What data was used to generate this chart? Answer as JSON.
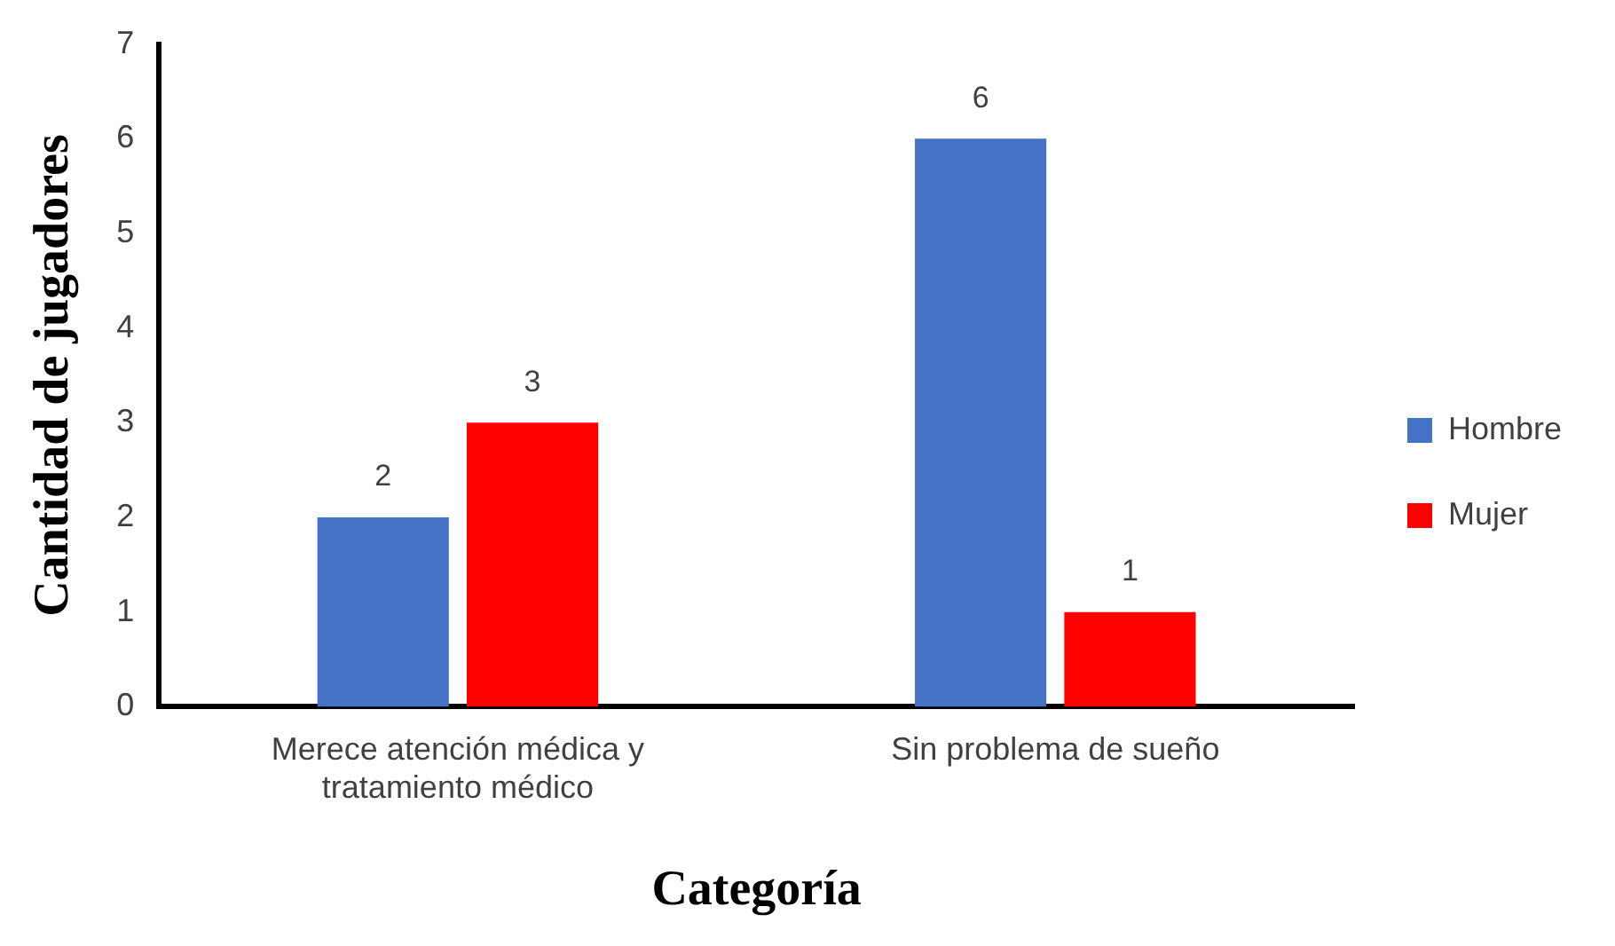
{
  "chart_data": {
    "type": "bar",
    "xlabel": "Categoría",
    "ylabel": "Cantidad de jugadores",
    "categories": [
      "Merece atención médica y tratamiento médico",
      "Sin problema de sueño"
    ],
    "series": [
      {
        "name": "Hombre",
        "color": "#4472c4",
        "values": [
          2,
          6
        ]
      },
      {
        "name": "Mujer",
        "color": "#ff0000",
        "values": [
          3,
          1
        ]
      }
    ],
    "ylim": [
      0,
      7
    ],
    "yticks": [
      0,
      1,
      2,
      3,
      4,
      5,
      6,
      7
    ],
    "grid": false,
    "legend": "right",
    "data_labels": true
  }
}
